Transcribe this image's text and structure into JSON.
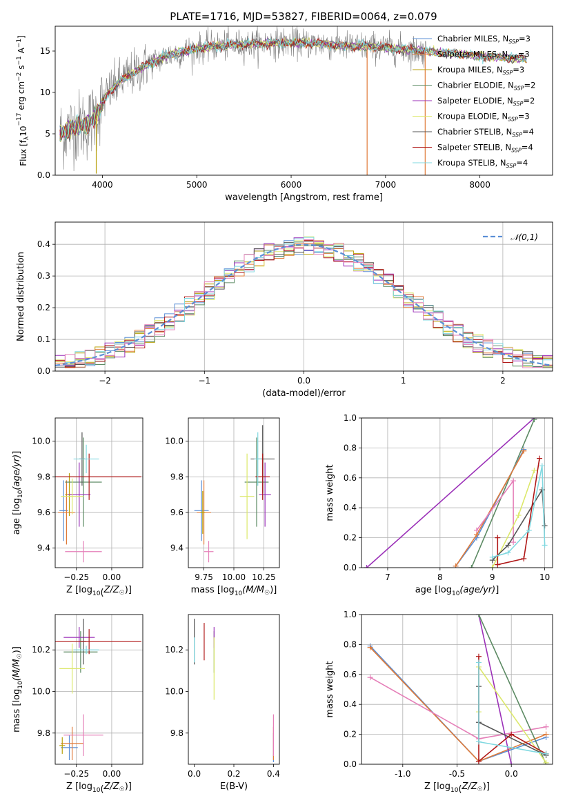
{
  "figure_title": "PLATE=1716, MJD=53827, FIBERID=0064, z=0.079",
  "colors": {
    "chabrier_miles": "#5b8fd6",
    "salpeter_miles": "#e07b39",
    "kroupa_miles": "#b8a00a",
    "chabrier_elodie": "#5c8a63",
    "salpeter_elodie": "#9b30b8",
    "kroupa_elodie": "#dce86a",
    "chabrier_stelib": "#555555",
    "salpeter_stelib": "#b01818",
    "kroupa_stelib": "#7fd8e0",
    "extra_pink": "#e57fb8",
    "data_grey": "#808080"
  },
  "chart_data": [
    {
      "id": "spectrum",
      "type": "line",
      "xlabel": "wavelength [Angstrom, rest frame]",
      "ylabel": "Flux [f_λ10^-17 erg cm^-2 s^-1 A^-1]",
      "xlim": [
        3500,
        8770
      ],
      "ylim": [
        0,
        18
      ],
      "xticks": [
        4000,
        5000,
        6000,
        7000,
        8000
      ],
      "yticks": [
        0,
        5,
        10,
        15
      ],
      "grid": false,
      "legend_position": "right",
      "legend": [
        {
          "name": "Chabrier MILES",
          "nssp": "3",
          "color": "#5b8fd6"
        },
        {
          "name": "Salpeter MILES",
          "nssp": "3",
          "color": "#e07b39"
        },
        {
          "name": "Kroupa MILES",
          "nssp": "3",
          "color": "#b8a00a"
        },
        {
          "name": "Chabrier ELODIE",
          "nssp": "2",
          "color": "#5c8a63"
        },
        {
          "name": "Salpeter ELODIE",
          "nssp": "2",
          "color": "#9b30b8"
        },
        {
          "name": "Kroupa ELODIE",
          "nssp": "3",
          "color": "#dce86a"
        },
        {
          "name": "Chabrier STELIB",
          "nssp": "4",
          "color": "#555555"
        },
        {
          "name": "Salpeter STELIB",
          "nssp": "4",
          "color": "#b01818"
        },
        {
          "name": "Kroupa STELIB",
          "nssp": "4",
          "color": "#7fd8e0"
        }
      ],
      "continuum": [
        [
          3550,
          5.0
        ],
        [
          3700,
          5.8
        ],
        [
          3850,
          6.2
        ],
        [
          3950,
          7.5
        ],
        [
          4050,
          9.8
        ],
        [
          4200,
          11.5
        ],
        [
          4350,
          12.5
        ],
        [
          4500,
          13.5
        ],
        [
          4700,
          14.5
        ],
        [
          5000,
          15.3
        ],
        [
          5200,
          15.6
        ],
        [
          5500,
          15.8
        ],
        [
          5800,
          16.0
        ],
        [
          6000,
          16.0
        ],
        [
          6300,
          15.9
        ],
        [
          6600,
          15.6
        ],
        [
          6900,
          15.5
        ],
        [
          7200,
          15.2
        ],
        [
          7500,
          14.9
        ],
        [
          8000,
          14.4
        ],
        [
          8500,
          14.0
        ]
      ],
      "model_range": [
        3550,
        8500
      ],
      "data_range": [
        3550,
        7430
      ],
      "dips": [
        [
          3935,
          0.2
        ],
        [
          6805,
          0.0
        ],
        [
          7420,
          0.0
        ]
      ]
    },
    {
      "id": "residuals",
      "type": "histogram",
      "xlabel": "(data-model)/error",
      "ylabel": "Normed distribution",
      "xlim": [
        -2.5,
        2.5
      ],
      "ylim": [
        0,
        0.47
      ],
      "xticks": [
        -2,
        -1,
        0,
        1,
        2
      ],
      "yticks": [
        0.0,
        0.1,
        0.2,
        0.3,
        0.4
      ],
      "grid": true,
      "bin_width": 0.1,
      "bins_start": -2.5,
      "reference_curve": {
        "name": "𝒩(0,1)",
        "mean": 0,
        "sigma": 1,
        "color": "#5b8fd6"
      },
      "legend_position": "upper right"
    },
    {
      "id": "age_vs_Z",
      "type": "errorbar",
      "xlabel": "Z [log10(Z/Z☉)]",
      "ylabel": "age [log10(age/yr)]",
      "xlim": [
        -0.4,
        0.22
      ],
      "ylim": [
        9.29,
        10.13
      ],
      "xticks": [
        -0.25,
        0.0
      ],
      "yticks": [
        9.4,
        9.6,
        9.8,
        10.0
      ],
      "grid": true,
      "points": [
        {
          "c": "chabrier_miles",
          "x": -0.34,
          "xe": 0.03,
          "y": 9.61,
          "ye": 0.17
        },
        {
          "c": "salpeter_miles",
          "x": -0.32,
          "xe": 0.06,
          "y": 9.6,
          "ye": 0.18
        },
        {
          "c": "kroupa_miles",
          "x": -0.3,
          "xe": 0.03,
          "y": 9.7,
          "ye": 0.12
        },
        {
          "c": "chabrier_elodie",
          "x": -0.2,
          "xe": 0.13,
          "y": 9.77,
          "ye": 0.25
        },
        {
          "c": "salpeter_elodie",
          "x": -0.23,
          "xe": 0.08,
          "y": 9.7,
          "ye": 0.18
        },
        {
          "c": "kroupa_elodie",
          "x": -0.28,
          "xe": 0.08,
          "y": 9.69,
          "ye": 0.1
        },
        {
          "c": "chabrier_stelib",
          "x": -0.21,
          "xe": 0.02,
          "y": 9.9,
          "ye": 0.15
        },
        {
          "c": "salpeter_stelib",
          "x": -0.16,
          "xe": 0.37,
          "y": 9.8,
          "ye": 0.13
        },
        {
          "c": "kroupa_stelib",
          "x": -0.18,
          "xe": 0.09,
          "y": 9.9,
          "ye": 0.08
        },
        {
          "c": "extra_pink",
          "x": -0.2,
          "xe": 0.13,
          "y": 9.38,
          "ye": 0.06
        }
      ]
    },
    {
      "id": "age_vs_mass",
      "type": "errorbar",
      "xlabel": "mass [log10(M/M☉)]",
      "ylabel": "",
      "xlim": [
        9.62,
        10.38
      ],
      "ylim": [
        9.29,
        10.13
      ],
      "xticks": [
        9.75,
        10.0,
        10.25
      ],
      "yticks": [
        9.4,
        9.6,
        9.8,
        10.0
      ],
      "grid": true,
      "points": [
        {
          "c": "chabrier_miles",
          "x": 9.73,
          "xe": 0.06,
          "y": 9.61,
          "ye": 0.17
        },
        {
          "c": "salpeter_miles",
          "x": 9.75,
          "xe": 0.06,
          "y": 9.6,
          "ye": 0.18
        },
        {
          "c": "kroupa_miles",
          "x": 9.74,
          "xe": 0.02,
          "y": 9.6,
          "ye": 0.12
        },
        {
          "c": "chabrier_elodie",
          "x": 10.19,
          "xe": 0.1,
          "y": 9.77,
          "ye": 0.25
        },
        {
          "c": "salpeter_elodie",
          "x": 10.26,
          "xe": 0.05,
          "y": 9.7,
          "ye": 0.18
        },
        {
          "c": "kroupa_elodie",
          "x": 10.11,
          "xe": 0.06,
          "y": 9.69,
          "ye": 0.24
        },
        {
          "c": "chabrier_stelib",
          "x": 10.24,
          "xe": 0.1,
          "y": 9.9,
          "ye": 0.19
        },
        {
          "c": "salpeter_stelib",
          "x": 10.24,
          "xe": 0.06,
          "y": 9.8,
          "ye": 0.13
        },
        {
          "c": "kroupa_stelib",
          "x": 10.2,
          "xe": 0.03,
          "y": 9.9,
          "ye": 0.15
        },
        {
          "c": "extra_pink",
          "x": 9.79,
          "xe": 0.04,
          "y": 9.38,
          "ye": 0.06
        }
      ]
    },
    {
      "id": "weight_vs_age",
      "type": "line",
      "xlabel": "age [log10(age/yr)]",
      "ylabel": "mass weight",
      "xlim": [
        6.5,
        10.15
      ],
      "ylim": [
        0,
        1
      ],
      "xticks": [
        7,
        8,
        9,
        10
      ],
      "yticks": [
        0.0,
        0.2,
        0.4,
        0.6,
        0.8,
        1.0
      ],
      "grid": true,
      "series": [
        {
          "c": "salpeter_elodie",
          "x": [
            6.6,
            9.8
          ],
          "y": [
            0.0,
            1.0
          ]
        },
        {
          "c": "chabrier_elodie",
          "x": [
            8.6,
            9.8
          ],
          "y": [
            0.0,
            0.99
          ]
        },
        {
          "c": "chabrier_miles",
          "x": [
            8.3,
            8.7,
            9.6
          ],
          "y": [
            0.01,
            0.2,
            0.79
          ]
        },
        {
          "c": "salpeter_miles",
          "x": [
            8.3,
            8.7,
            9.6
          ],
          "y": [
            0.01,
            0.22,
            0.78
          ]
        },
        {
          "c": "extra_pink",
          "x": [
            8.7,
            9.4,
            9.4
          ],
          "y": [
            0.25,
            0.58,
            0.17
          ]
        },
        {
          "c": "kroupa_elodie",
          "x": [
            9.0,
            9.5,
            9.8
          ],
          "y": [
            0.0,
            0.35,
            0.65
          ]
        },
        {
          "c": "chabrier_stelib",
          "x": [
            9.0,
            9.3,
            9.95,
            10.0
          ],
          "y": [
            0.05,
            0.15,
            0.52,
            0.28
          ]
        },
        {
          "c": "salpeter_stelib",
          "x": [
            9.1,
            9.1,
            9.6,
            9.9
          ],
          "y": [
            0.2,
            0.02,
            0.06,
            0.73
          ]
        },
        {
          "c": "kroupa_stelib",
          "x": [
            9.0,
            9.3,
            9.7,
            9.95,
            10.0
          ],
          "y": [
            0.07,
            0.1,
            0.25,
            0.68,
            0.15
          ]
        }
      ]
    },
    {
      "id": "mass_vs_Z",
      "type": "errorbar",
      "xlabel": "Z [log10(Z/Z☉)]",
      "ylabel": "mass [log10(M/M☉)]",
      "xlim": [
        -0.4,
        0.22
      ],
      "ylim": [
        9.65,
        10.37
      ],
      "xticks": [
        -0.25,
        0.0
      ],
      "yticks": [
        9.8,
        10.0,
        10.2
      ],
      "grid": true,
      "points": [
        {
          "c": "chabrier_miles",
          "x": -0.3,
          "xe": 0.06,
          "y": 9.73,
          "ye": 0.06
        },
        {
          "c": "salpeter_miles",
          "x": -0.28,
          "xe": 0.08,
          "y": 9.75,
          "ye": 0.08
        },
        {
          "c": "kroupa_miles",
          "x": -0.35,
          "xe": 0.02,
          "y": 9.74,
          "ye": 0.04
        },
        {
          "c": "chabrier_elodie",
          "x": -0.22,
          "xe": 0.12,
          "y": 10.19,
          "ye": 0.1
        },
        {
          "c": "salpeter_elodie",
          "x": -0.23,
          "xe": 0.11,
          "y": 10.26,
          "ye": 0.05
        },
        {
          "c": "kroupa_elodie",
          "x": -0.28,
          "xe": 0.09,
          "y": 10.11,
          "ye": 0.12
        },
        {
          "c": "chabrier_stelib",
          "x": -0.2,
          "xe": 0.02,
          "y": 10.24,
          "ye": 0.11
        },
        {
          "c": "salpeter_stelib",
          "x": -0.16,
          "xe": 0.37,
          "y": 10.24,
          "ye": 0.06
        },
        {
          "c": "kroupa_stelib",
          "x": -0.18,
          "xe": 0.09,
          "y": 10.2,
          "ye": 0.02
        },
        {
          "c": "extra_pink",
          "x": -0.2,
          "xe": 0.14,
          "y": 9.79,
          "ye": 0.1
        }
      ]
    },
    {
      "id": "mass_vs_ebv",
      "type": "errorbar",
      "xlabel": "E(B-V)",
      "ylabel": "",
      "xlim": [
        -0.03,
        0.43
      ],
      "ylim": [
        9.65,
        10.37
      ],
      "xticks": [
        0.0,
        0.2,
        0.4
      ],
      "yticks": [
        9.8,
        10.0,
        10.2
      ],
      "grid": false,
      "points": [
        {
          "c": "chabrier_miles",
          "x": 0.4,
          "xe": 0,
          "y": 9.73,
          "ye": 0.07
        },
        {
          "c": "salpeter_miles",
          "x": 0.4,
          "xe": 0,
          "y": 9.75,
          "ye": 0.08
        },
        {
          "c": "chabrier_elodie",
          "x": 0.1,
          "xe": 0,
          "y": 10.19,
          "ye": 0.1
        },
        {
          "c": "salpeter_elodie",
          "x": 0.1,
          "xe": 0,
          "y": 10.26,
          "ye": 0.05
        },
        {
          "c": "kroupa_elodie",
          "x": 0.1,
          "xe": 0,
          "y": 10.11,
          "ye": 0.15
        },
        {
          "c": "chabrier_stelib",
          "x": 0.0,
          "xe": 0,
          "y": 10.24,
          "ye": 0.11
        },
        {
          "c": "salpeter_stelib",
          "x": 0.05,
          "xe": 0,
          "y": 10.24,
          "ye": 0.09
        },
        {
          "c": "kroupa_stelib",
          "x": 0.0,
          "xe": 0,
          "y": 10.2,
          "ye": 0.06
        },
        {
          "c": "extra_pink",
          "x": 0.4,
          "xe": 0,
          "y": 9.79,
          "ye": 0.1
        }
      ]
    },
    {
      "id": "weight_vs_Z",
      "type": "line",
      "xlabel": "Z [log10(Z/Z☉)]",
      "ylabel": "mass weight",
      "xlim": [
        -1.38,
        0.38
      ],
      "ylim": [
        0,
        1
      ],
      "xticks": [
        -1.0,
        -0.5,
        0.0
      ],
      "yticks": [
        0.0,
        0.2,
        0.4,
        0.6,
        0.8,
        1.0
      ],
      "grid": true,
      "series": [
        {
          "c": "chabrier_miles",
          "x": [
            -1.3,
            -0.3,
            0.32
          ],
          "y": [
            0.79,
            0.02,
            0.18
          ]
        },
        {
          "c": "salpeter_miles",
          "x": [
            -1.3,
            -0.3,
            0.32
          ],
          "y": [
            0.78,
            0.02,
            0.2
          ]
        },
        {
          "c": "extra_pink",
          "x": [
            -1.3,
            -0.3,
            0.32
          ],
          "y": [
            0.58,
            0.17,
            0.25
          ]
        },
        {
          "c": "salpeter_elodie",
          "x": [
            -0.3,
            0.0
          ],
          "y": [
            1.0,
            0.0
          ]
        },
        {
          "c": "chabrier_elodie",
          "x": [
            -0.3,
            0.32
          ],
          "y": [
            1.0,
            0.0
          ]
        },
        {
          "c": "kroupa_elodie",
          "x": [
            -0.3,
            -0.3,
            0.32
          ],
          "y": [
            0.35,
            0.65,
            0.01
          ]
        },
        {
          "c": "chabrier_stelib",
          "x": [
            -0.3,
            -0.3,
            0.32
          ],
          "y": [
            0.52,
            0.28,
            0.06
          ]
        },
        {
          "c": "salpeter_stelib",
          "x": [
            -0.3,
            -0.3,
            0.0,
            0.32
          ],
          "y": [
            0.72,
            0.02,
            0.2,
            0.07
          ]
        },
        {
          "c": "kroupa_stelib",
          "x": [
            -0.3,
            -0.3,
            0.32
          ],
          "y": [
            0.68,
            0.15,
            0.07
          ]
        }
      ]
    }
  ]
}
